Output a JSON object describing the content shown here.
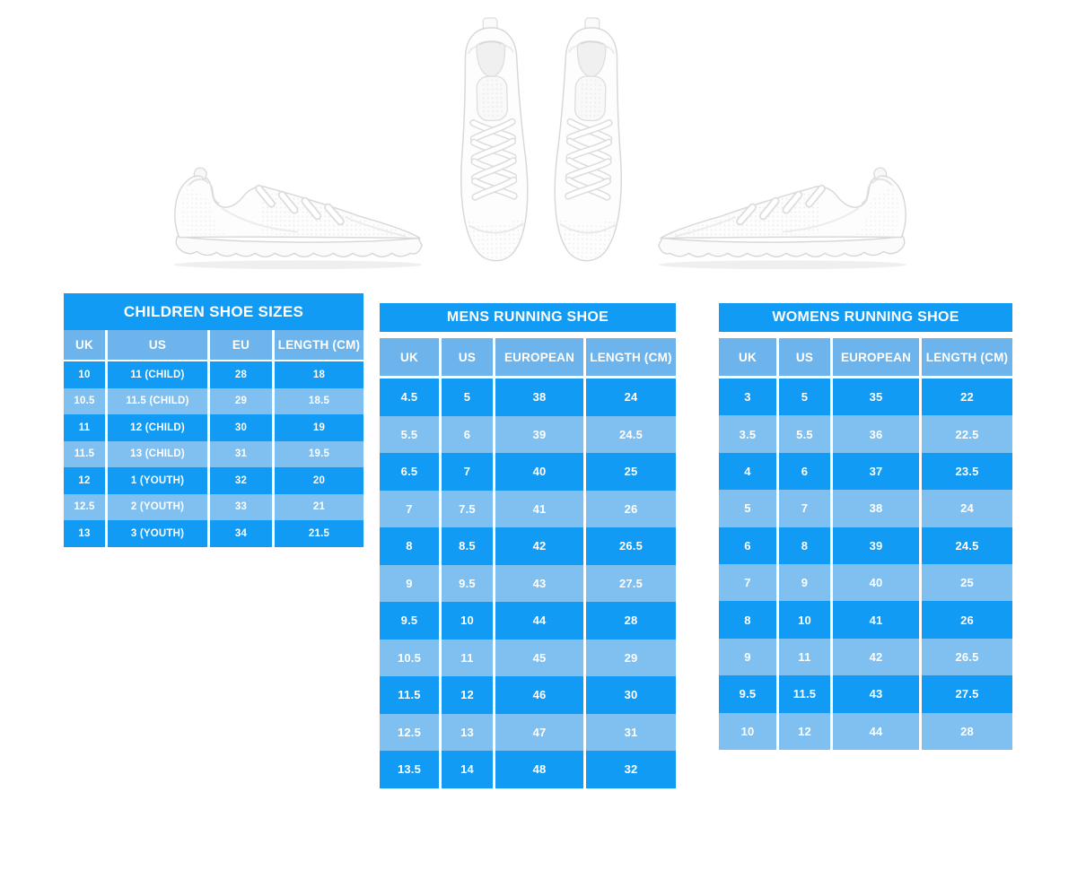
{
  "colors": {
    "bright_blue": "#119bf4",
    "light_blue": "#7fc0f1",
    "header_blue": "#6db4ec",
    "table_text": "#ffffff",
    "background": "#ffffff"
  },
  "images": [
    {
      "name": "white-sneaker-side-view-facing-right"
    },
    {
      "name": "white-sneakers-pair-top-view"
    },
    {
      "name": "white-sneaker-side-view-facing-left"
    }
  ],
  "tables": [
    {
      "title": "CHILDREN SHOE SIZES",
      "headers": [
        "UK",
        "US",
        "EU",
        "LENGTH (CM)"
      ],
      "rows": [
        [
          "10",
          "11 (CHILD)",
          "28",
          "18"
        ],
        [
          "10.5",
          "11.5 (CHILD)",
          "29",
          "18.5"
        ],
        [
          "11",
          "12 (CHILD)",
          "30",
          "19"
        ],
        [
          "11.5",
          "13 (CHILD)",
          "31",
          "19.5"
        ],
        [
          "12",
          "1 (YOUTH)",
          "32",
          "20"
        ],
        [
          "12.5",
          "2 (YOUTH)",
          "33",
          "21"
        ],
        [
          "13",
          "3 (YOUTH)",
          "34",
          "21.5"
        ]
      ]
    },
    {
      "title": "MENS RUNNING SHOE",
      "headers": [
        "UK",
        "US",
        "EUROPEAN",
        "LENGTH (CM)"
      ],
      "rows": [
        [
          "4.5",
          "5",
          "38",
          "24"
        ],
        [
          "5.5",
          "6",
          "39",
          "24.5"
        ],
        [
          "6.5",
          "7",
          "40",
          "25"
        ],
        [
          "7",
          "7.5",
          "41",
          "26"
        ],
        [
          "8",
          "8.5",
          "42",
          "26.5"
        ],
        [
          "9",
          "9.5",
          "43",
          "27.5"
        ],
        [
          "9.5",
          "10",
          "44",
          "28"
        ],
        [
          "10.5",
          "11",
          "45",
          "29"
        ],
        [
          "11.5",
          "12",
          "46",
          "30"
        ],
        [
          "12.5",
          "13",
          "47",
          "31"
        ],
        [
          "13.5",
          "14",
          "48",
          "32"
        ]
      ]
    },
    {
      "title": "WOMENS RUNNING SHOE",
      "headers": [
        "UK",
        "US",
        "EUROPEAN",
        "LENGTH (CM)"
      ],
      "rows": [
        [
          "3",
          "5",
          "35",
          "22"
        ],
        [
          "3.5",
          "5.5",
          "36",
          "22.5"
        ],
        [
          "4",
          "6",
          "37",
          "23.5"
        ],
        [
          "5",
          "7",
          "38",
          "24"
        ],
        [
          "6",
          "8",
          "39",
          "24.5"
        ],
        [
          "7",
          "9",
          "40",
          "25"
        ],
        [
          "8",
          "10",
          "41",
          "26"
        ],
        [
          "9",
          "11",
          "42",
          "26.5"
        ],
        [
          "9.5",
          "11.5",
          "43",
          "27.5"
        ],
        [
          "10",
          "12",
          "44",
          "28"
        ]
      ]
    }
  ]
}
